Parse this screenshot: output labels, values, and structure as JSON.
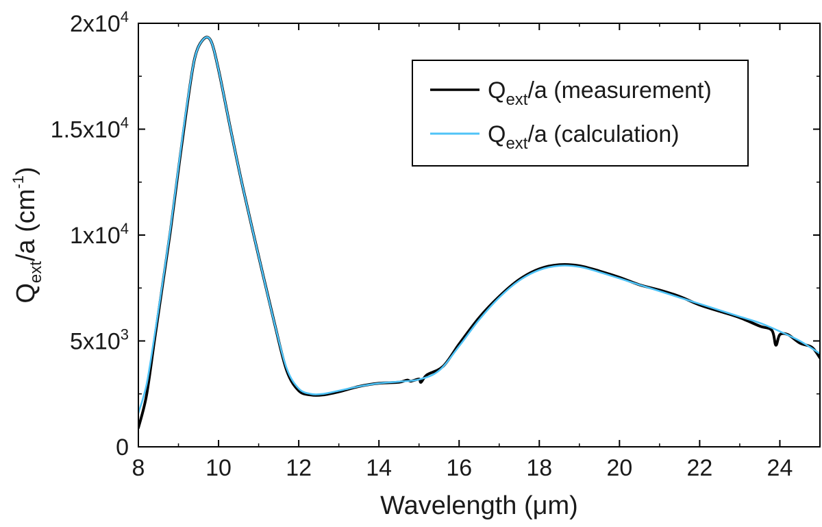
{
  "chart_data": {
    "type": "line",
    "title": "",
    "xlabel": "Wavelength (μm)",
    "ylabel": {
      "main": "Q",
      "sub": "ext",
      "rest": "/a (cm",
      "sup": "-1",
      "close": ")"
    },
    "xlim": [
      8,
      25
    ],
    "ylim": [
      0,
      20000
    ],
    "grid": false,
    "legend_position": "top-right",
    "x_ticks": [
      8,
      10,
      12,
      14,
      16,
      18,
      20,
      22,
      24
    ],
    "y_ticks": [
      {
        "value": 0,
        "mantissa": "0",
        "exp": ""
      },
      {
        "value": 5000,
        "mantissa": "5x10",
        "exp": "3"
      },
      {
        "value": 10000,
        "mantissa": "1x10",
        "exp": "4"
      },
      {
        "value": 15000,
        "mantissa": "1.5x10",
        "exp": "4"
      },
      {
        "value": 20000,
        "mantissa": "2x10",
        "exp": "4"
      }
    ],
    "series": [
      {
        "name": "measurement",
        "label": {
          "main": "Q",
          "sub": "ext",
          "rest": "/a (measurement)"
        },
        "color": "#000000",
        "x": [
          8.0,
          8.2,
          8.4,
          8.6,
          8.8,
          9.0,
          9.2,
          9.4,
          9.6,
          9.8,
          10.0,
          10.3,
          10.6,
          11.0,
          11.4,
          11.7,
          12.0,
          12.3,
          12.6,
          13.0,
          13.5,
          14.0,
          14.5,
          14.7,
          14.8,
          15.0,
          15.05,
          15.2,
          15.6,
          16.0,
          16.5,
          17.0,
          17.5,
          18.0,
          18.5,
          19.0,
          19.5,
          20.0,
          20.5,
          21.0,
          21.5,
          22.0,
          22.5,
          23.0,
          23.5,
          23.8,
          23.9,
          24.0,
          24.2,
          24.5,
          24.8,
          25.0
        ],
        "y": [
          900,
          2400,
          5000,
          7600,
          10200,
          13100,
          15900,
          18300,
          19200,
          19200,
          17800,
          15000,
          12300,
          9000,
          5800,
          3600,
          2650,
          2450,
          2450,
          2600,
          2850,
          3000,
          3050,
          3150,
          3100,
          3200,
          3050,
          3400,
          3800,
          4850,
          6100,
          7100,
          7900,
          8400,
          8600,
          8550,
          8300,
          8000,
          7650,
          7400,
          7100,
          6700,
          6400,
          6100,
          5700,
          5500,
          4800,
          5300,
          5300,
          4900,
          4700,
          4200
        ]
      },
      {
        "name": "calculation",
        "label": {
          "main": "Q",
          "sub": "ext",
          "rest": "/a (calculation)"
        },
        "color": "#4fc3f7",
        "x": [
          8.0,
          8.2,
          8.4,
          8.6,
          8.8,
          9.0,
          9.2,
          9.4,
          9.6,
          9.8,
          10.0,
          10.3,
          10.6,
          11.0,
          11.4,
          11.7,
          12.0,
          12.3,
          12.6,
          13.0,
          13.5,
          14.0,
          14.5,
          15.0,
          15.5,
          16.0,
          16.5,
          17.0,
          17.5,
          18.0,
          18.5,
          19.0,
          19.5,
          20.0,
          20.5,
          21.0,
          21.5,
          22.0,
          22.5,
          23.0,
          23.5,
          24.0,
          24.5,
          25.0
        ],
        "y": [
          1600,
          2900,
          5200,
          7700,
          10300,
          13200,
          16000,
          18300,
          19200,
          19200,
          17800,
          15000,
          12300,
          9000,
          5800,
          3700,
          2750,
          2500,
          2500,
          2650,
          2850,
          3000,
          3080,
          3180,
          3600,
          4750,
          6000,
          7050,
          7850,
          8350,
          8550,
          8500,
          8250,
          7950,
          7650,
          7350,
          7050,
          6750,
          6450,
          6150,
          5850,
          5450,
          5000,
          4400
        ]
      }
    ]
  }
}
